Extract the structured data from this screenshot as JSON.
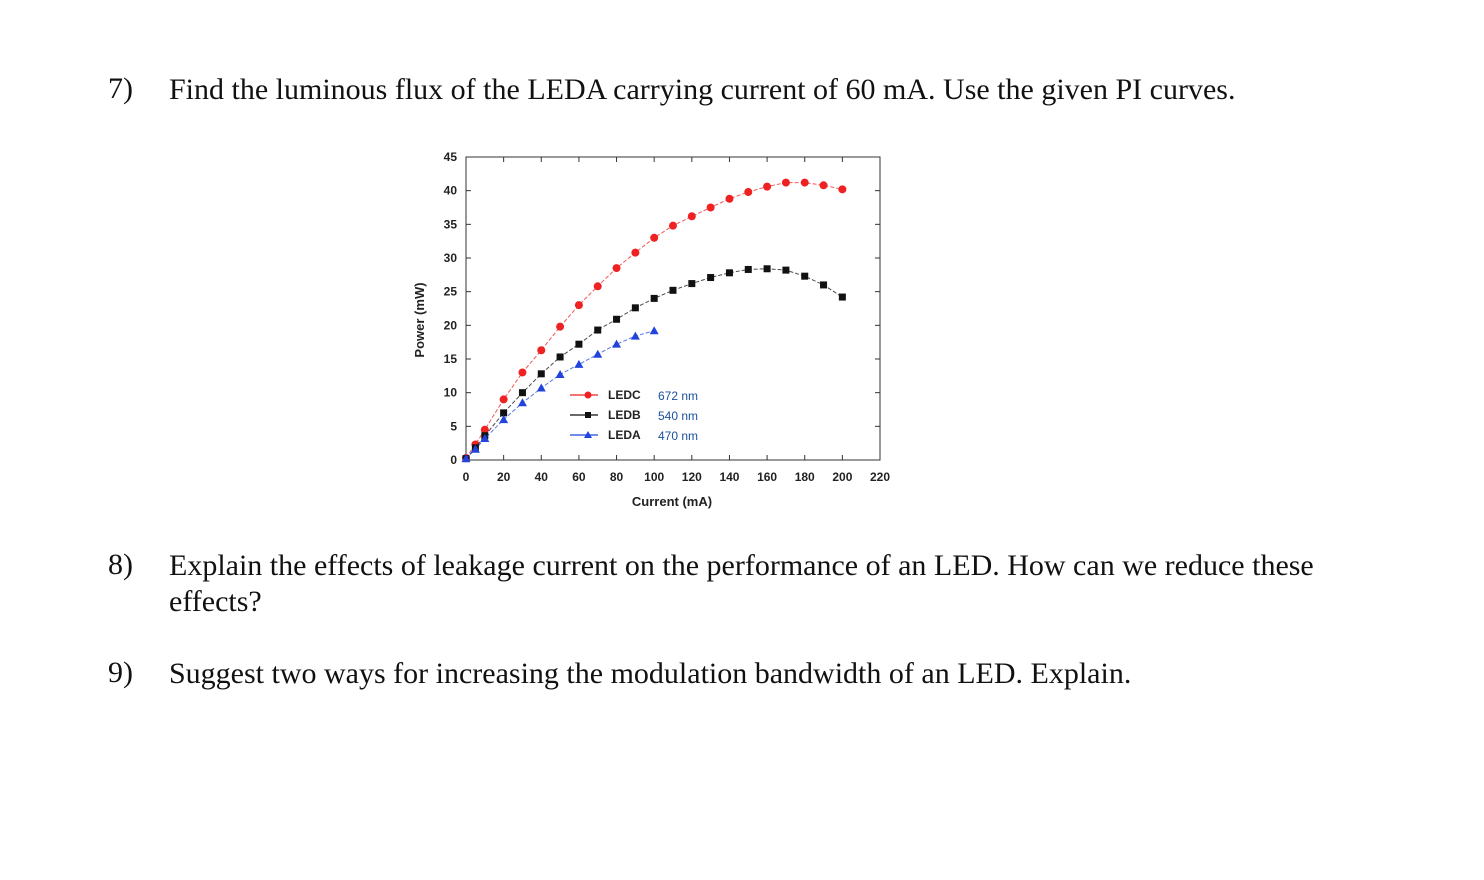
{
  "questions": [
    {
      "number": "7)",
      "text": "Find the luminous flux of the LEDA carrying current of 60 mA. Use the given PI curves."
    },
    {
      "number": "8)",
      "text": "Explain the effects of leakage current on the performance of an LED. How can we reduce these effects?"
    },
    {
      "number": "9)",
      "text": "Suggest two ways for increasing the modulation bandwidth of an LED. Explain."
    }
  ],
  "chart_data": {
    "type": "line",
    "xlabel": "Current (mA)",
    "ylabel": "Power (mW)",
    "xlim": [
      0,
      220
    ],
    "ylim": [
      0,
      45
    ],
    "xticks": [
      0,
      20,
      40,
      60,
      80,
      100,
      120,
      140,
      160,
      180,
      200,
      220
    ],
    "yticks": [
      0,
      5,
      10,
      15,
      20,
      25,
      30,
      35,
      40,
      45
    ],
    "grid": false,
    "legend_position": "lower-center",
    "series": [
      {
        "name": "LEDC",
        "wavelength": "672 nm",
        "color": "#ee2222",
        "marker": "circle",
        "x": [
          0,
          5,
          10,
          20,
          30,
          40,
          50,
          60,
          70,
          80,
          90,
          100,
          110,
          120,
          130,
          140,
          150,
          160,
          170,
          180,
          190,
          200
        ],
        "y": [
          0.3,
          2.3,
          4.5,
          9.0,
          13.0,
          16.3,
          19.8,
          23.0,
          25.8,
          28.5,
          30.8,
          33.0,
          34.8,
          36.2,
          37.5,
          38.8,
          39.8,
          40.6,
          41.2,
          41.2,
          40.8,
          40.2
        ]
      },
      {
        "name": "LEDB",
        "wavelength": "540 nm",
        "color": "#111111",
        "marker": "square",
        "x": [
          0,
          5,
          10,
          20,
          30,
          40,
          50,
          60,
          70,
          80,
          90,
          100,
          110,
          120,
          130,
          140,
          150,
          160,
          170,
          180,
          190,
          200
        ],
        "y": [
          0.2,
          1.8,
          3.6,
          7.0,
          10.0,
          12.8,
          15.3,
          17.2,
          19.3,
          20.9,
          22.6,
          24.0,
          25.2,
          26.2,
          27.1,
          27.8,
          28.3,
          28.4,
          28.2,
          27.3,
          26.0,
          24.2
        ]
      },
      {
        "name": "LEDA",
        "wavelength": "470 nm",
        "color": "#2244dd",
        "marker": "triangle",
        "x": [
          0,
          5,
          10,
          20,
          30,
          40,
          50,
          60,
          70,
          80,
          90,
          100
        ],
        "y": [
          0.2,
          1.6,
          3.2,
          6.0,
          8.5,
          10.7,
          12.7,
          14.2,
          15.7,
          17.2,
          18.4,
          19.2
        ]
      }
    ]
  }
}
